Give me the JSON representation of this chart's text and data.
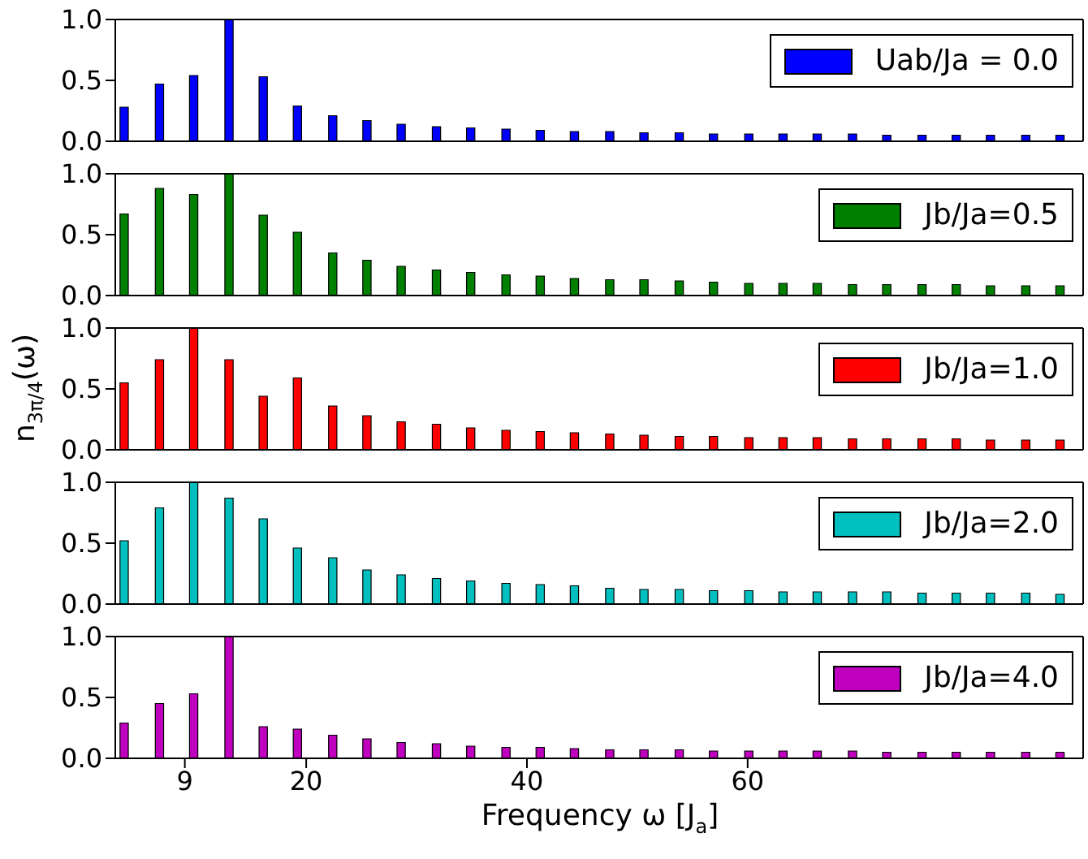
{
  "chart_data": [
    {
      "type": "bar",
      "x": [
        3.5,
        6.7,
        9.8,
        13.0,
        16.1,
        19.2,
        22.4,
        25.5,
        28.6,
        31.8,
        34.9,
        38.1,
        41.2,
        44.3,
        47.5,
        50.6,
        53.8,
        56.9,
        60.1,
        63.2,
        66.3,
        69.5,
        72.6,
        75.8,
        78.9,
        82.0,
        85.2,
        88.3
      ],
      "series": [
        {
          "name": "Uab/Ja = 0.0",
          "color": "#0000ff",
          "values": [
            0.28,
            0.47,
            0.54,
            1.0,
            0.53,
            0.29,
            0.21,
            0.17,
            0.14,
            0.12,
            0.11,
            0.1,
            0.09,
            0.08,
            0.08,
            0.07,
            0.07,
            0.06,
            0.06,
            0.06,
            0.06,
            0.06,
            0.05,
            0.05,
            0.05,
            0.05,
            0.05,
            0.05
          ]
        }
      ],
      "xlim": [
        2.7,
        90.4
      ],
      "xticks": [
        9,
        20,
        40,
        60
      ],
      "ylim": [
        0,
        1
      ],
      "yticks": [
        {
          "value": 0,
          "label": "0.0"
        },
        {
          "value": 0.5,
          "label": "0.5"
        },
        {
          "value": 1,
          "label": "1.0"
        }
      ],
      "legend": "top right",
      "tick_labels": "y"
    },
    {
      "type": "bar",
      "x": [
        3.5,
        6.7,
        9.8,
        13.0,
        16.1,
        19.2,
        22.4,
        25.5,
        28.6,
        31.8,
        34.9,
        38.1,
        41.2,
        44.3,
        47.5,
        50.6,
        53.8,
        56.9,
        60.1,
        63.2,
        66.3,
        69.5,
        72.6,
        75.8,
        78.9,
        82.0,
        85.2,
        88.3
      ],
      "series": [
        {
          "name": "Jb/Ja=0.5",
          "color": "#008000",
          "values": [
            0.67,
            0.88,
            0.83,
            1.0,
            0.66,
            0.52,
            0.35,
            0.29,
            0.24,
            0.21,
            0.19,
            0.17,
            0.16,
            0.14,
            0.13,
            0.13,
            0.12,
            0.11,
            0.1,
            0.1,
            0.1,
            0.09,
            0.09,
            0.09,
            0.09,
            0.08,
            0.08,
            0.08
          ]
        }
      ],
      "xlim": [
        2.7,
        90.4
      ],
      "xticks": [
        9,
        20,
        40,
        60
      ],
      "ylim": [
        0,
        1
      ],
      "yticks": [
        {
          "value": 0,
          "label": "0.0"
        },
        {
          "value": 0.5,
          "label": "0.5"
        },
        {
          "value": 1,
          "label": "1.0"
        }
      ],
      "legend": "top right",
      "tick_labels": "y"
    },
    {
      "type": "bar",
      "x": [
        3.5,
        6.7,
        9.8,
        13.0,
        16.1,
        19.2,
        22.4,
        25.5,
        28.6,
        31.8,
        34.9,
        38.1,
        41.2,
        44.3,
        47.5,
        50.6,
        53.8,
        56.9,
        60.1,
        63.2,
        66.3,
        69.5,
        72.6,
        75.8,
        78.9,
        82.0,
        85.2,
        88.3
      ],
      "series": [
        {
          "name": "Jb/Ja=1.0",
          "color": "#ff0000",
          "values": [
            0.55,
            0.74,
            1.0,
            0.74,
            0.44,
            0.59,
            0.36,
            0.28,
            0.23,
            0.21,
            0.18,
            0.16,
            0.15,
            0.14,
            0.13,
            0.12,
            0.11,
            0.11,
            0.1,
            0.1,
            0.1,
            0.09,
            0.09,
            0.09,
            0.09,
            0.08,
            0.08,
            0.08
          ]
        }
      ],
      "ylabel": "n$_{3π/4}$(ω)",
      "xlim": [
        2.7,
        90.4
      ],
      "xticks": [
        9,
        20,
        40,
        60
      ],
      "ylim": [
        0,
        1
      ],
      "yticks": [
        {
          "value": 0,
          "label": "0.0"
        },
        {
          "value": 0.5,
          "label": "0.5"
        },
        {
          "value": 1,
          "label": "1.0"
        }
      ],
      "legend": "top right",
      "tick_labels": "y"
    },
    {
      "type": "bar",
      "x": [
        3.5,
        6.7,
        9.8,
        13.0,
        16.1,
        19.2,
        22.4,
        25.5,
        28.6,
        31.8,
        34.9,
        38.1,
        41.2,
        44.3,
        47.5,
        50.6,
        53.8,
        56.9,
        60.1,
        63.2,
        66.3,
        69.5,
        72.6,
        75.8,
        78.9,
        82.0,
        85.2,
        88.3
      ],
      "series": [
        {
          "name": "Jb/Ja=2.0",
          "color": "#00bfbf",
          "values": [
            0.52,
            0.79,
            1.0,
            0.87,
            0.7,
            0.46,
            0.38,
            0.28,
            0.24,
            0.21,
            0.19,
            0.17,
            0.16,
            0.15,
            0.13,
            0.12,
            0.12,
            0.11,
            0.11,
            0.1,
            0.1,
            0.1,
            0.1,
            0.09,
            0.09,
            0.09,
            0.09,
            0.08
          ]
        }
      ],
      "xlim": [
        2.7,
        90.4
      ],
      "xticks": [
        9,
        20,
        40,
        60
      ],
      "ylim": [
        0,
        1
      ],
      "yticks": [
        {
          "value": 0,
          "label": "0.0"
        },
        {
          "value": 0.5,
          "label": "0.5"
        },
        {
          "value": 1,
          "label": "1.0"
        }
      ],
      "legend": "top right",
      "tick_labels": "y"
    },
    {
      "type": "bar",
      "x": [
        3.5,
        6.7,
        9.8,
        13.0,
        16.1,
        19.2,
        22.4,
        25.5,
        28.6,
        31.8,
        34.9,
        38.1,
        41.2,
        44.3,
        47.5,
        50.6,
        53.8,
        56.9,
        60.1,
        63.2,
        66.3,
        69.5,
        72.6,
        75.8,
        78.9,
        82.0,
        85.2,
        88.3
      ],
      "series": [
        {
          "name": "Jb/Ja=4.0",
          "color": "#bf00bf",
          "values": [
            0.29,
            0.45,
            0.53,
            1.0,
            0.26,
            0.24,
            0.19,
            0.16,
            0.13,
            0.12,
            0.1,
            0.09,
            0.09,
            0.08,
            0.07,
            0.07,
            0.07,
            0.06,
            0.06,
            0.06,
            0.06,
            0.06,
            0.05,
            0.05,
            0.05,
            0.05,
            0.05,
            0.05
          ]
        }
      ],
      "xlabel": "Frequency ω [J$_{a}$]",
      "xlim": [
        2.7,
        90.4
      ],
      "xticks": [
        9,
        20,
        40,
        60
      ],
      "ylim": [
        0,
        1
      ],
      "yticks": [
        {
          "value": 0,
          "label": "0.0"
        },
        {
          "value": 0.5,
          "label": "0.5"
        },
        {
          "value": 1,
          "label": "1.0"
        }
      ],
      "legend": "top right"
    }
  ]
}
